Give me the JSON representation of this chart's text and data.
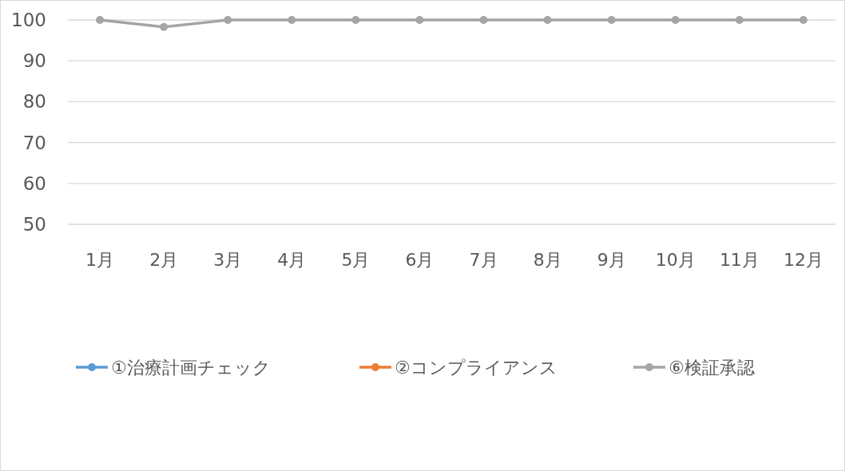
{
  "chart_data": {
    "type": "line",
    "categories": [
      "1月",
      "2月",
      "3月",
      "4月",
      "5月",
      "6月",
      "7月",
      "8月",
      "9月",
      "10月",
      "11月",
      "12月"
    ],
    "series": [
      {
        "name": "①治療計画チェック",
        "color": "#5b9bd5",
        "values": [
          null,
          null,
          null,
          null,
          null,
          null,
          null,
          null,
          null,
          null,
          null,
          null
        ]
      },
      {
        "name": "②コンプライアンス",
        "color": "#ed7d31",
        "values": [
          null,
          null,
          null,
          null,
          null,
          null,
          null,
          null,
          null,
          null,
          null,
          null
        ]
      },
      {
        "name": "⑥検証承認",
        "color": "#a5a5a5",
        "values": [
          100,
          98.3,
          100,
          100,
          100,
          100,
          100,
          100,
          100,
          100,
          100,
          100
        ]
      }
    ],
    "ylim": [
      50,
      100
    ],
    "yticks": [
      50,
      60,
      70,
      80,
      90,
      100
    ],
    "grid": "y",
    "legend": "bottom",
    "marker": "circle",
    "line_style": "solid"
  }
}
